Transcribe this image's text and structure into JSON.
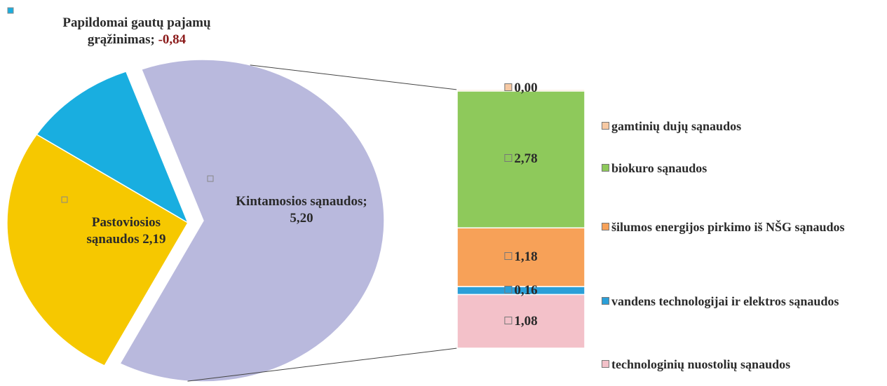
{
  "chart_data": [
    {
      "type": "pie",
      "categories": [
        "Kintamosios sąnaudos;",
        "Pastoviosios sąnaudos",
        "Papildomai gautų pajamų grąžinimas;"
      ],
      "values": [
        5.2,
        2.19,
        -0.84
      ],
      "value_labels": [
        "5,20",
        "2,19",
        "-0,84"
      ],
      "colors": [
        "#b9b9dd",
        "#f6c800",
        "#19aee0"
      ]
    },
    {
      "type": "stacked_bar",
      "series": [
        {
          "name": "gamtinių dujų sąnaudos",
          "color": "#f7c9a3",
          "values": [
            0.0
          ],
          "value_labels": [
            "0,00"
          ]
        },
        {
          "name": "biokuro sąnaudos",
          "color": "#8ec95b",
          "values": [
            2.78
          ],
          "value_labels": [
            "2,78"
          ]
        },
        {
          "name": "šilumos energijos pirkimo iš NŠG sąnaudos",
          "color": "#f7a158",
          "values": [
            1.18
          ],
          "value_labels": [
            "1,18"
          ]
        },
        {
          "name": "vandens technologijai ir elektros sąnaudos",
          "color": "#2a9fd8",
          "values": [
            0.16
          ],
          "value_labels": [
            "0,16"
          ]
        },
        {
          "name": "technologinių nuostolių sąnaudos",
          "color": "#f3c1c9",
          "values": [
            1.08
          ],
          "value_labels": [
            "1,08"
          ]
        }
      ]
    }
  ]
}
